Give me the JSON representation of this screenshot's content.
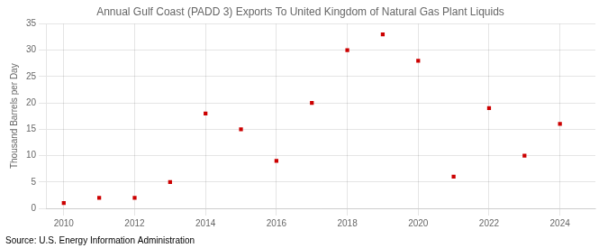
{
  "chart_data": {
    "type": "scatter",
    "title": "Annual Gulf Coast (PADD 3) Exports To United Kingdom of Natural Gas Plant Liquids",
    "y_label": "Thousand Barrels per Day",
    "annotations": [
      "Source: U.S. Energy Information Administration"
    ],
    "x": [
      2010,
      2011,
      2012,
      2013,
      2014,
      2015,
      2016,
      2017,
      2018,
      2019,
      2020,
      2021,
      2022,
      2023,
      2024
    ],
    "values": [
      1,
      2,
      2,
      5,
      18,
      15,
      9,
      20,
      30,
      33,
      28,
      6,
      19,
      10,
      16
    ],
    "color": "#cc0000",
    "marker": "square",
    "xlim": [
      2009.5,
      2025.0
    ],
    "xticks": [
      2010,
      2012,
      2014,
      2016,
      2018,
      2020,
      2022,
      2024
    ],
    "ylim": [
      0,
      35
    ],
    "yticks": [
      0,
      5,
      10,
      15,
      20,
      25,
      30,
      35
    ],
    "grid": true
  }
}
